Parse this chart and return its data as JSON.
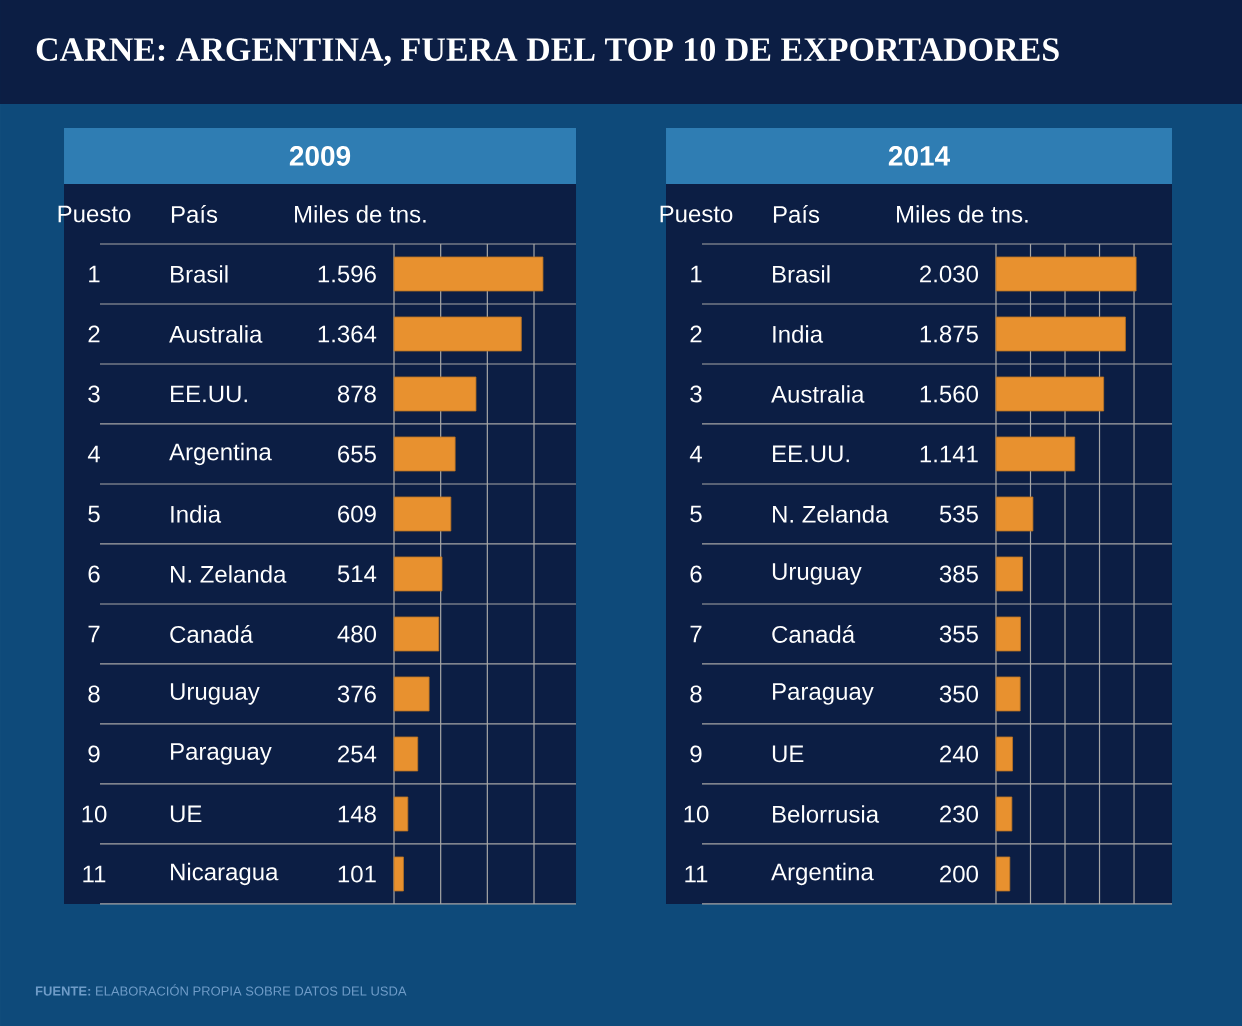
{
  "chart_data": [
    {
      "type": "bar",
      "orientation": "horizontal",
      "title": "CARNE: ARGENTINA, FUERA DEL TOP 10 DE EXPORTADORES",
      "subtitle": "2009",
      "ylabel": "País",
      "xlabel": "Miles de tns.",
      "categories": [
        "Brasil",
        "Australia",
        "EE.UU.",
        "Argentina",
        "India",
        "N. Zelanda",
        "Canadá",
        "Uruguay",
        "Paraguay",
        "UE",
        "Nicaragua"
      ],
      "values": [
        1596,
        1364,
        878,
        655,
        609,
        514,
        480,
        376,
        254,
        148,
        101
      ],
      "value_labels": [
        "1.596",
        "1.364",
        "878",
        "655",
        "609",
        "514",
        "480",
        "376",
        "254",
        "148",
        "101"
      ],
      "color": "#e8912f",
      "xlim": [
        0,
        1950
      ],
      "xticks": [
        {
          "value": 0,
          "label": null
        },
        {
          "value": 500,
          "label": null
        },
        {
          "value": 1000,
          "label": null
        },
        {
          "value": 1500,
          "label": null
        }
      ],
      "grid": "x",
      "tick_labels": "y",
      "annotations": [
        "Puesto",
        "1",
        "2",
        "3",
        "4",
        "5",
        "6",
        "7",
        "8",
        "9",
        "10",
        "11"
      ]
    },
    {
      "type": "bar",
      "orientation": "horizontal",
      "title": "2014",
      "ylabel": "País",
      "xlabel": "Miles de tns.",
      "categories": [
        "Brasil",
        "India",
        "Australia",
        "EE.UU.",
        "N. Zelanda",
        "Uruguay",
        "Canadá",
        "Paraguay",
        "UE",
        "Belorrusia",
        "Argentina"
      ],
      "values": [
        2030,
        1875,
        1560,
        1141,
        535,
        385,
        355,
        350,
        240,
        230,
        200
      ],
      "value_labels": [
        "2.030",
        "1.875",
        "1.560",
        "1.141",
        "535",
        "385",
        "355",
        "350",
        "240",
        "230",
        "200"
      ],
      "color": "#e8912f",
      "xlim": [
        0,
        2550
      ],
      "xticks": [
        {
          "value": 0,
          "label": null
        },
        {
          "value": 500,
          "label": null
        },
        {
          "value": 1000,
          "label": null
        },
        {
          "value": 1500,
          "label": null
        },
        {
          "value": 2000,
          "label": null
        }
      ],
      "grid": "x",
      "tick_labels": "y",
      "annotations": [
        "Puesto",
        "1",
        "2",
        "3",
        "4",
        "5",
        "6",
        "7",
        "8",
        "9",
        "10",
        "11",
        "**FUENTE:** ELABORACIÓN PROPIA SOBRE DATOS DEL USDA"
      ]
    }
  ]
}
